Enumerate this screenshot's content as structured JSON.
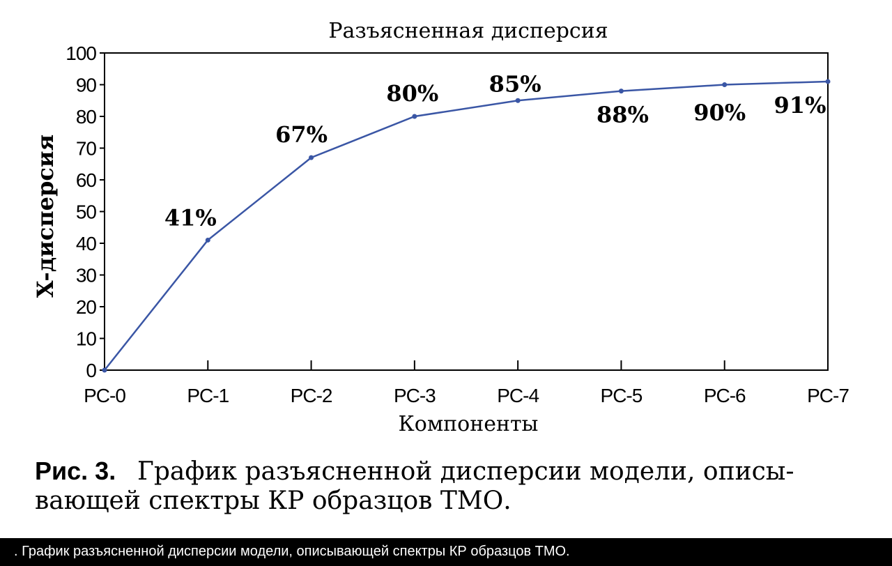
{
  "chart_data": {
    "type": "line",
    "title": "Разъясненная дисперсия",
    "x_label": "Компоненты",
    "y_label": "X-дисперсия",
    "categories": [
      "PC-0",
      "PC-1",
      "PC-2",
      "PC-3",
      "PC-4",
      "PC-5",
      "PC-6",
      "PC-7"
    ],
    "values": [
      0,
      41,
      67,
      80,
      85,
      88,
      90,
      91
    ],
    "value_labels": [
      null,
      "41%",
      "67%",
      "80%",
      "85%",
      "88%",
      "90%",
      "91%"
    ],
    "color": "#3a56a5",
    "ylim": [
      0,
      100
    ],
    "yticks": [
      0,
      10,
      20,
      30,
      40,
      50,
      60,
      70,
      80,
      90,
      100
    ]
  },
  "caption": {
    "label": "Рис. 3.",
    "lines": [
      "График разъясненной дисперсии модели, описы-",
      "вающей спектры КР образцов ТМО."
    ]
  },
  "footer": ". График разъясненной дисперсии модели, описывающей спектры КР образцов ТМО."
}
